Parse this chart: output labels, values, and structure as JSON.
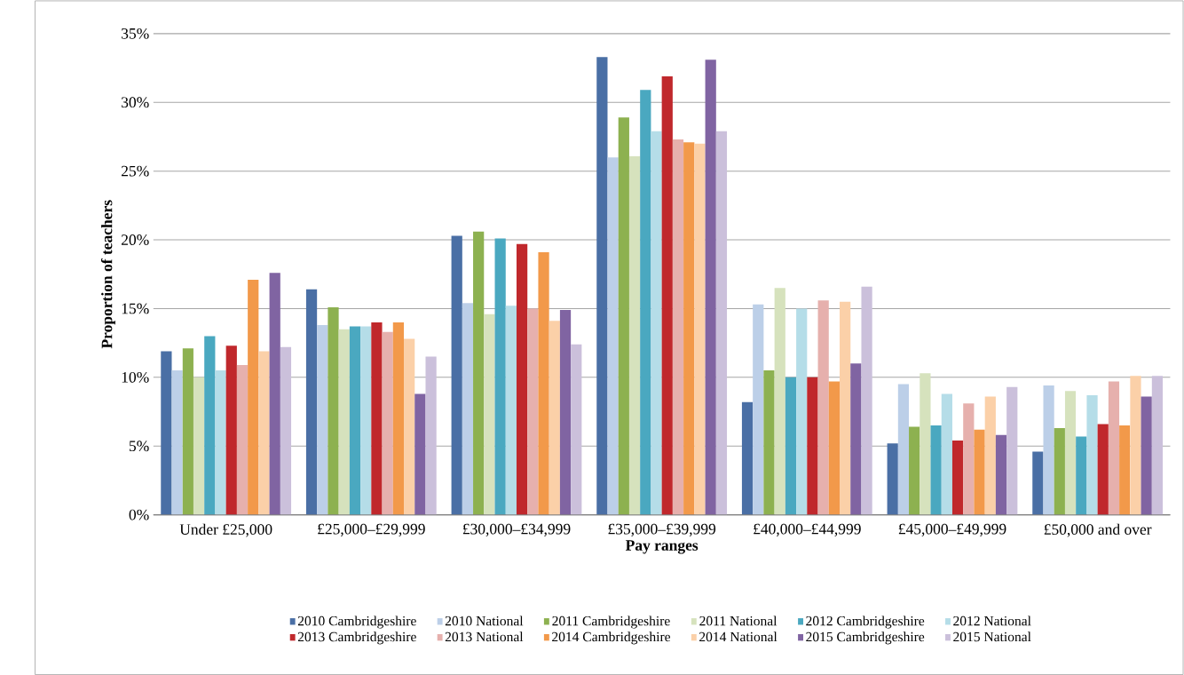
{
  "chart_data": {
    "type": "bar",
    "xlabel": "Pay ranges",
    "ylabel": "Proportion of teachers",
    "categories": [
      "Under £25,000",
      "£25,000–£29,999",
      "£30,000–£34,999",
      "£35,000–£39,999",
      "£40,000–£44,999",
      "£45,000–£49,999",
      "£50,000 and over"
    ],
    "ylim": [
      0,
      35
    ],
    "yticks": [
      {
        "value": 0,
        "label": "0%"
      },
      {
        "value": 5,
        "label": "5%"
      },
      {
        "value": 10,
        "label": "10%"
      },
      {
        "value": 15,
        "label": "15%"
      },
      {
        "value": 20,
        "label": "20%"
      },
      {
        "value": 25,
        "label": "25%"
      },
      {
        "value": 30,
        "label": "30%"
      },
      {
        "value": 35,
        "label": "35%"
      }
    ],
    "grid": "y",
    "legend": "bottom",
    "series": [
      {
        "name": "2010 Cambridgeshire",
        "color": "#4a6fa5",
        "values": [
          11.9,
          16.4,
          20.3,
          33.3,
          8.2,
          5.2,
          4.6
        ]
      },
      {
        "name": "2010 National",
        "color": "#bccfe8",
        "values": [
          10.5,
          13.8,
          15.4,
          26.0,
          15.3,
          9.5,
          9.4
        ]
      },
      {
        "name": "2011 Cambridgeshire",
        "color": "#8db150",
        "values": [
          12.1,
          15.1,
          20.6,
          28.9,
          10.5,
          6.4,
          6.3
        ]
      },
      {
        "name": "2011 National",
        "color": "#d6e2bd",
        "values": [
          10.0,
          13.5,
          14.6,
          26.1,
          16.5,
          10.3,
          9.0
        ]
      },
      {
        "name": "2012 Cambridgeshire",
        "color": "#4aa8c0",
        "values": [
          13.0,
          13.7,
          20.1,
          30.9,
          10.0,
          6.5,
          5.7
        ]
      },
      {
        "name": "2012 National",
        "color": "#b5dde8",
        "values": [
          10.5,
          13.7,
          15.2,
          27.9,
          15.0,
          8.8,
          8.7
        ]
      },
      {
        "name": "2013 Cambridgeshire",
        "color": "#c0282c",
        "values": [
          12.3,
          14.0,
          19.7,
          31.9,
          10.0,
          5.4,
          6.6
        ]
      },
      {
        "name": "2013 National",
        "color": "#e6b0ad",
        "values": [
          10.9,
          13.3,
          15.0,
          27.3,
          15.6,
          8.1,
          9.7
        ]
      },
      {
        "name": "2014 Cambridgeshire",
        "color": "#f2994a",
        "values": [
          17.1,
          14.0,
          19.1,
          27.1,
          9.7,
          6.2,
          6.5
        ]
      },
      {
        "name": "2014 National",
        "color": "#fbd0a8",
        "values": [
          11.9,
          12.8,
          14.1,
          27.0,
          15.5,
          8.6,
          10.1
        ]
      },
      {
        "name": "2015 Cambridgeshire",
        "color": "#8064a2",
        "values": [
          17.6,
          8.8,
          14.9,
          33.1,
          11.0,
          5.8,
          8.6
        ]
      },
      {
        "name": "2015 National",
        "color": "#cbc0db",
        "values": [
          12.2,
          11.5,
          12.4,
          27.9,
          16.6,
          9.3,
          10.1
        ]
      }
    ]
  }
}
